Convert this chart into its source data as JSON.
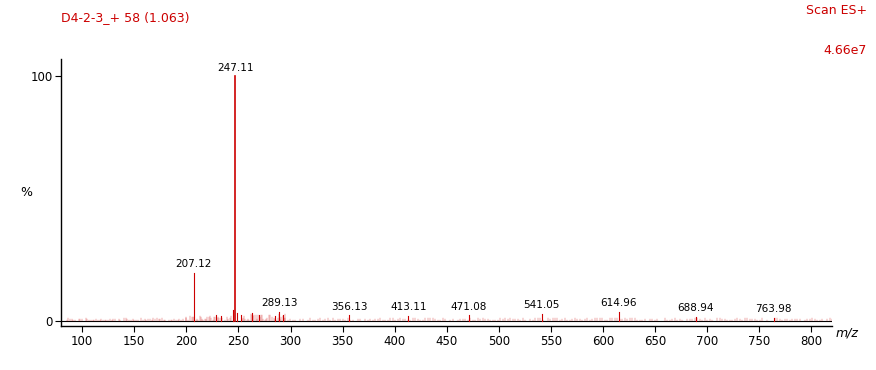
{
  "title_left": "D4-2-3_+ 58 (1.063)",
  "title_right_line1": "Scan ES+",
  "title_right_line2": "4.66e7",
  "xlabel": "m/z",
  "ylabel": "%",
  "xlim": [
    80,
    820
  ],
  "ylim": [
    -2,
    107
  ],
  "xticks": [
    100,
    150,
    200,
    250,
    300,
    350,
    400,
    450,
    500,
    550,
    600,
    650,
    700,
    750,
    800
  ],
  "yticks": [
    0,
    100
  ],
  "background_color": "#ffffff",
  "spine_color": "#000000",
  "peak_color": "#cc0000",
  "noise_color": "#cc0000",
  "title_color": "#cc0000",
  "peaks": [
    {
      "mz": 247.11,
      "intensity": 100.0,
      "label": "247.11"
    },
    {
      "mz": 207.12,
      "intensity": 19.5,
      "label": "207.12"
    },
    {
      "mz": 289.13,
      "intensity": 3.5,
      "label": "289.13"
    },
    {
      "mz": 356.13,
      "intensity": 2.2,
      "label": "356.13"
    },
    {
      "mz": 413.11,
      "intensity": 2.0,
      "label": "413.11"
    },
    {
      "mz": 471.08,
      "intensity": 2.2,
      "label": "471.08"
    },
    {
      "mz": 541.05,
      "intensity": 2.8,
      "label": "541.05"
    },
    {
      "mz": 614.96,
      "intensity": 3.5,
      "label": "614.96"
    },
    {
      "mz": 688.94,
      "intensity": 1.5,
      "label": "688.94"
    },
    {
      "mz": 763.98,
      "intensity": 1.2,
      "label": "763.98"
    },
    {
      "mz": 245.1,
      "intensity": 4.5,
      "label": ""
    },
    {
      "mz": 249.12,
      "intensity": 3.0,
      "label": ""
    },
    {
      "mz": 263.1,
      "intensity": 3.2,
      "label": ""
    },
    {
      "mz": 228.1,
      "intensity": 2.5,
      "label": ""
    },
    {
      "mz": 233.11,
      "intensity": 2.0,
      "label": ""
    },
    {
      "mz": 252.12,
      "intensity": 2.5,
      "label": ""
    },
    {
      "mz": 270.13,
      "intensity": 2.2,
      "label": ""
    },
    {
      "mz": 285.12,
      "intensity": 2.0,
      "label": ""
    },
    {
      "mz": 293.14,
      "intensity": 2.5,
      "label": ""
    }
  ],
  "noise_segments": [
    {
      "x_start": 85,
      "x_end": 200,
      "amplitude": 1.0,
      "density": 70
    },
    {
      "x_start": 200,
      "x_end": 243,
      "amplitude": 2.2,
      "density": 35
    },
    {
      "x_start": 253,
      "x_end": 295,
      "amplitude": 2.8,
      "density": 35
    },
    {
      "x_start": 295,
      "x_end": 820,
      "amplitude": 1.3,
      "density": 220
    }
  ],
  "label_offsets": {
    "247.11": [
      0,
      1.5
    ],
    "207.12": [
      0,
      1.5
    ],
    "289.13": [
      0,
      1.5
    ],
    "356.13": [
      0,
      1.5
    ],
    "413.11": [
      0,
      1.5
    ],
    "471.08": [
      0,
      1.5
    ],
    "541.05": [
      0,
      1.5
    ],
    "614.96": [
      0,
      1.5
    ],
    "688.94": [
      0,
      1.5
    ],
    "763.98": [
      0,
      1.5
    ]
  }
}
